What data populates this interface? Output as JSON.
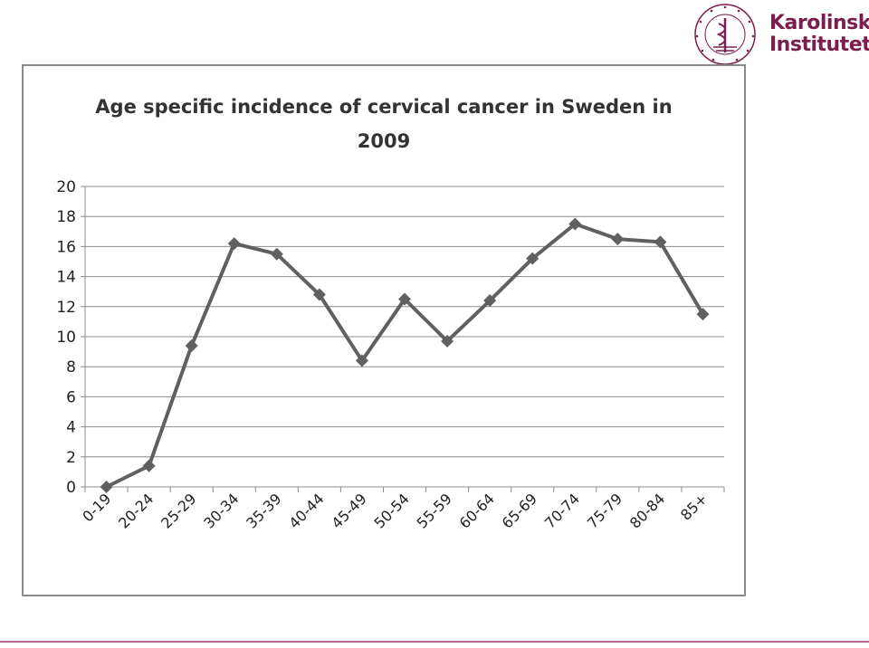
{
  "logo": {
    "line1": "Karolinska",
    "line2": "Institutet",
    "seal_text": "KAROLINSKA INSTITUTET",
    "color": "#7b1e4e"
  },
  "chart_data": {
    "type": "line",
    "title_lines": [
      "Age specific incidence of cervical cancer in Sweden in",
      "2009"
    ],
    "xlabel": "",
    "ylabel": "",
    "categories": [
      "0-19",
      "20-24",
      "25-29",
      "30-34",
      "35-39",
      "40-44",
      "45-49",
      "50-54",
      "55-59",
      "60-64",
      "65-69",
      "70-74",
      "75-79",
      "80-84",
      "85+"
    ],
    "series": [
      {
        "values": [
          0,
          1.4,
          9.4,
          16.2,
          15.5,
          12.8,
          8.4,
          12.5,
          9.7,
          12.4,
          15.2,
          17.5,
          16.5,
          16.3,
          11.5
        ]
      }
    ],
    "ylim": [
      0,
      20
    ],
    "yticks": [
      0,
      2,
      4,
      6,
      8,
      10,
      12,
      14,
      16,
      18,
      20
    ],
    "grid": true,
    "legend": "none",
    "line_color": "#606060"
  }
}
